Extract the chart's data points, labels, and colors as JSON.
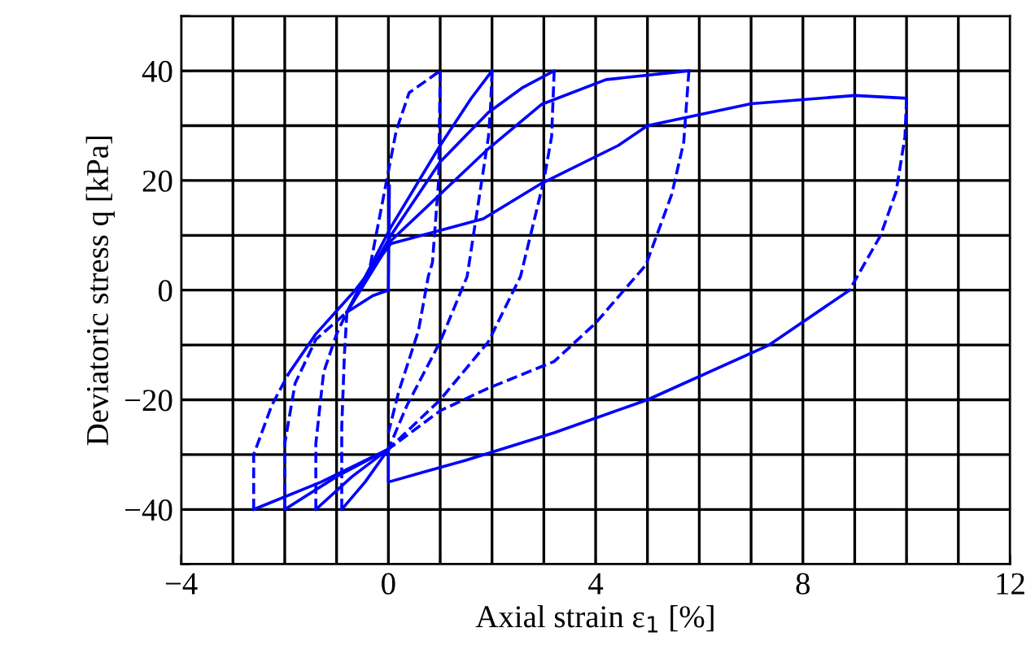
{
  "chart_data": {
    "type": "line",
    "xlabel": "Axial strain ε$_{1}$ [%]",
    "ylabel": "Deviatoric stress q [kPa]",
    "xlim": [
      -4,
      12
    ],
    "ylim": [
      -50,
      50
    ],
    "xticks": [
      -4,
      {
        "value": -3,
        "label": null
      },
      {
        "value": -2,
        "label": null
      },
      {
        "value": -1,
        "label": null
      },
      0,
      {
        "value": 1,
        "label": null
      },
      {
        "value": 2,
        "label": null
      },
      {
        "value": 3,
        "label": null
      },
      4,
      {
        "value": 5,
        "label": null
      },
      {
        "value": 6,
        "label": null
      },
      {
        "value": 7,
        "label": null
      },
      8,
      {
        "value": 9,
        "label": null
      },
      {
        "value": 10,
        "label": null
      },
      {
        "value": 11,
        "label": null
      },
      12
    ],
    "yticks": [
      {
        "value": -50,
        "label": null
      },
      -40,
      {
        "value": -30,
        "label": null
      },
      -20,
      {
        "value": -10,
        "label": null
      },
      0,
      {
        "value": 10,
        "label": null
      },
      20,
      {
        "value": 30,
        "label": null
      },
      40,
      {
        "value": 50,
        "label": null
      }
    ],
    "grid": true,
    "marker": "none",
    "series": [
      {
        "color": "#0000ff",
        "line_style": "dashed",
        "x": [
          10,
          9.97,
          9.8,
          9.5,
          8.9
        ],
        "values": [
          35,
          28,
          18,
          10,
          0
        ]
      },
      {
        "color": "#0000ff",
        "line_style": "solid",
        "x": [
          8.9,
          7.35,
          5,
          3.2,
          1.5,
          0,
          0
        ],
        "values": [
          0,
          -10,
          -20,
          -26,
          -31,
          -35,
          -29
        ]
      },
      {
        "color": "#0000ff",
        "line_style": "dashed",
        "x": [
          -2.6,
          -2.6,
          -2.25,
          -1.93
        ],
        "values": [
          -40,
          -30,
          -21,
          -15.3
        ]
      },
      {
        "color": "#0000ff",
        "line_style": "solid",
        "x": [
          -1.93,
          -1.4,
          -0.64,
          0.05,
          1.83,
          2.96,
          4.44,
          5,
          7,
          9,
          10
        ],
        "values": [
          -15.3,
          -8,
          0,
          8.5,
          13,
          19.5,
          26.4,
          30,
          34,
          35.5,
          35
        ]
      },
      {
        "color": "#0000ff",
        "line_style": "solid",
        "x": [
          -0.8,
          -0.3,
          0,
          0.02
        ],
        "values": [
          -4,
          -1,
          0,
          19
        ]
      },
      {
        "color": "#0000ff",
        "line_style": "dashed",
        "x": [
          -0.35,
          0.15,
          0.4,
          1
        ],
        "values": [
          4.5,
          29,
          36,
          40
        ]
      },
      {
        "color": "#0000ff",
        "line_style": "solid",
        "x": [
          -0.8,
          0.05,
          1,
          1.6,
          2
        ],
        "values": [
          -4,
          11.5,
          26.4,
          35,
          40
        ]
      },
      {
        "color": "#0000ff",
        "line_style": "solid",
        "x": [
          -0.8,
          0.05,
          1,
          1.93,
          2.6,
          3.2
        ],
        "values": [
          -4,
          10,
          23.4,
          32.4,
          37,
          40
        ]
      },
      {
        "color": "#0000ff",
        "line_style": "solid",
        "x": [
          -0.8,
          0.05,
          1,
          1.93,
          2.96,
          4.2,
          5.8
        ],
        "values": [
          -4,
          9,
          17.5,
          25.8,
          33.9,
          38.4,
          40
        ]
      },
      {
        "color": "#0000ff",
        "line_style": "dashed",
        "x": [
          1,
          0.97,
          0.85,
          0.77,
          0.58,
          0.2,
          0
        ],
        "values": [
          40,
          20,
          5,
          2.5,
          -7.4,
          -18.5,
          -26
        ]
      },
      {
        "color": "#0000ff",
        "line_style": "dashed",
        "x": [
          2,
          1.97,
          1.93,
          1.52,
          1,
          0.36,
          0
        ],
        "values": [
          40,
          33,
          27.9,
          2.5,
          -9.4,
          -21,
          -29
        ]
      },
      {
        "color": "#0000ff",
        "line_style": "dashed",
        "x": [
          3.2,
          3.15,
          3,
          2.55,
          1.93,
          1,
          0
        ],
        "values": [
          40,
          28,
          20,
          2.5,
          -9.4,
          -20,
          -29
        ]
      },
      {
        "color": "#0000ff",
        "line_style": "dashed",
        "x": [
          5.8,
          5.7,
          5.47,
          4.97,
          4,
          3.2,
          1.9,
          1,
          0
        ],
        "values": [
          40,
          27,
          17.5,
          4.6,
          -6,
          -13,
          -18,
          -22,
          -29
        ]
      },
      {
        "color": "#0000ff",
        "line_style": "solid",
        "x": [
          0,
          -1.3,
          -2.6
        ],
        "values": [
          -29,
          -35,
          -40
        ]
      },
      {
        "color": "#0000ff",
        "line_style": "solid",
        "x": [
          0,
          -1,
          -2
        ],
        "values": [
          -29,
          -34,
          -40
        ]
      },
      {
        "color": "#0000ff",
        "line_style": "solid",
        "x": [
          0,
          -0.7,
          -1.4
        ],
        "values": [
          -29,
          -34,
          -40
        ]
      },
      {
        "color": "#0000ff",
        "line_style": "solid",
        "x": [
          0,
          -0.45,
          -0.9
        ],
        "values": [
          -29,
          -35,
          -40
        ]
      },
      {
        "color": "#0000ff",
        "line_style": "dashed",
        "x": [
          -2,
          -2,
          -1.8,
          -1.4,
          -0.8
        ],
        "values": [
          -40,
          -28,
          -17,
          -9,
          -4
        ]
      },
      {
        "color": "#0000ff",
        "line_style": "dashed",
        "x": [
          -1.4,
          -1.4,
          -1.25,
          -1,
          -0.8
        ],
        "values": [
          -40,
          -28,
          -15,
          -8,
          -4
        ]
      },
      {
        "color": "#0000ff",
        "line_style": "dashed",
        "x": [
          -0.9,
          -0.9,
          -0.85,
          -0.8
        ],
        "values": [
          -40,
          -25,
          -12,
          -4
        ]
      }
    ]
  }
}
